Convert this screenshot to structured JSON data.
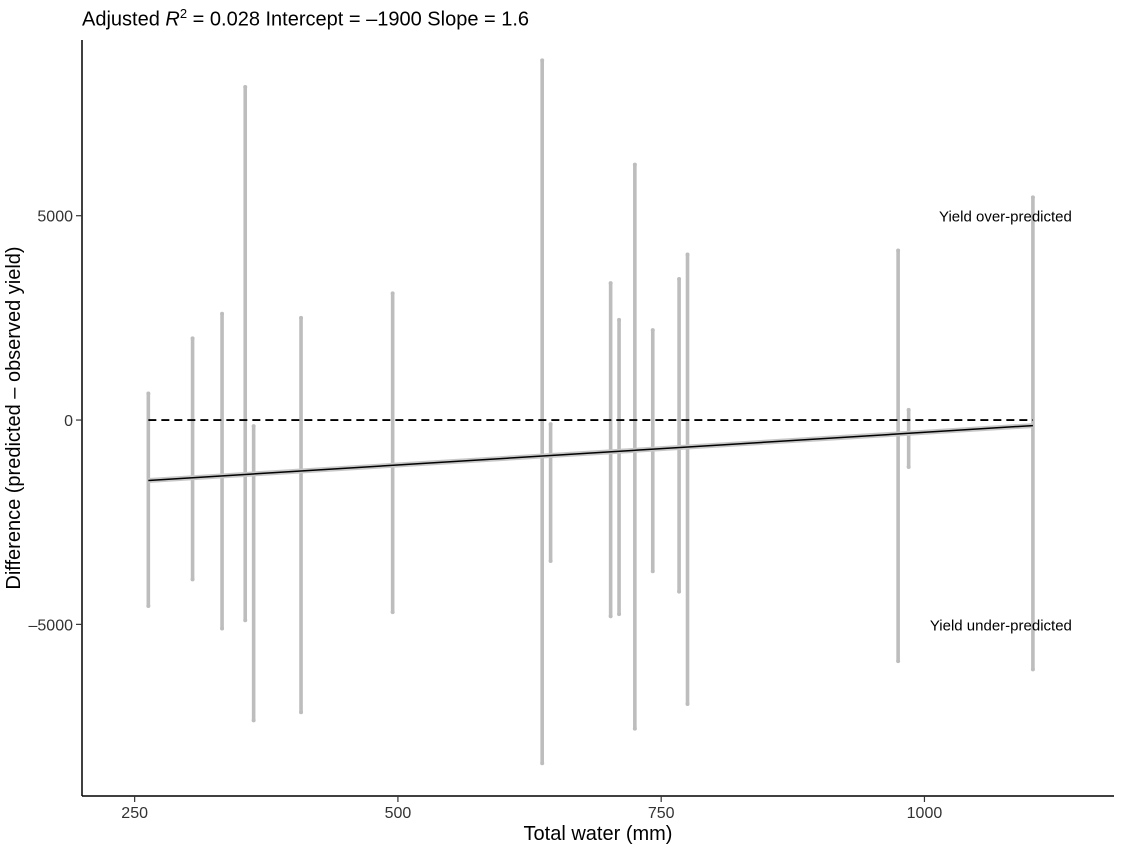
{
  "chart_data": {
    "type": "scatter",
    "title": {
      "prefix": "Adjusted",
      "r2_symbol": "R",
      "r2_exponent": "2",
      "stats": "=  0.028 Intercept = –1900 Slope = 1.6"
    },
    "xlabel": "Total water (mm)",
    "ylabel": "Difference (predicted – observed yield)",
    "xlim": [
      200,
      1180
    ],
    "ylim": [
      -9200,
      9300
    ],
    "x_ticks": [
      250,
      500,
      750,
      1000
    ],
    "y_ticks": [
      -5000,
      0,
      5000
    ],
    "x_tick_labels": [
      "250",
      "500",
      "750",
      "1000"
    ],
    "y_tick_labels": [
      "–5000",
      "0",
      "5000"
    ],
    "grid": false,
    "point_color": "#bdbdbd",
    "reference_line": {
      "y": 0,
      "x_range": [
        263,
        1103
      ],
      "style": "dashed",
      "color": "#000000"
    },
    "fit_line": {
      "intercept": -1900,
      "slope": 1.6,
      "x_range": [
        263,
        1103
      ],
      "color": "#000000",
      "ci_color": "#c8c8c8"
    },
    "annotations": [
      {
        "text": "Yield over-predicted",
        "x": 1140,
        "y": 5000
      },
      {
        "text": "Yield under-predicted",
        "x": 1140,
        "y": -5000
      }
    ],
    "columns": [
      {
        "x": 263,
        "y_min": -4550,
        "y_max": 650
      },
      {
        "x": 305,
        "y_min": -3900,
        "y_max": 2000
      },
      {
        "x": 333,
        "y_min": -5100,
        "y_max": 2600
      },
      {
        "x": 355,
        "y_min": -4900,
        "y_max": 8150
      },
      {
        "x": 363,
        "y_min": -7350,
        "y_max": -150
      },
      {
        "x": 408,
        "y_min": -7150,
        "y_max": 2500
      },
      {
        "x": 495,
        "y_min": -4700,
        "y_max": 3100
      },
      {
        "x": 637,
        "y_min": -8400,
        "y_max": 8800
      },
      {
        "x": 645,
        "y_min": -3450,
        "y_max": -100
      },
      {
        "x": 702,
        "y_min": -4800,
        "y_max": 3350
      },
      {
        "x": 710,
        "y_min": -4750,
        "y_max": 2450
      },
      {
        "x": 725,
        "y_min": -7550,
        "y_max": 6250
      },
      {
        "x": 742,
        "y_min": -3700,
        "y_max": 2200
      },
      {
        "x": 767,
        "y_min": -4200,
        "y_max": 3450
      },
      {
        "x": 775,
        "y_min": -6950,
        "y_max": 4050
      },
      {
        "x": 975,
        "y_min": -5900,
        "y_max": 4150
      },
      {
        "x": 985,
        "y_min": -1150,
        "y_max": 250
      },
      {
        "x": 1103,
        "y_min": -6100,
        "y_max": 5450
      }
    ]
  }
}
